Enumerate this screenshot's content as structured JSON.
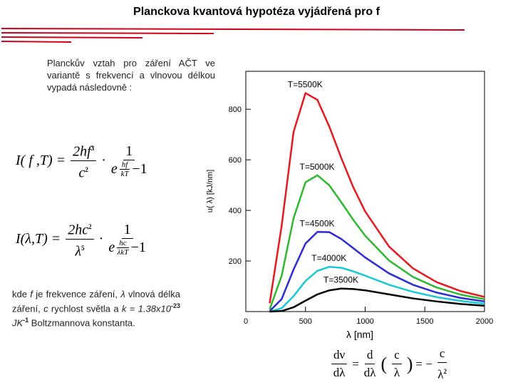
{
  "title": "Planckova kvantová hypotéza  vyjádřená pro f",
  "intro": "Planckův vztah pro záření AČT ve variantě s frekvencí a vlnovou délkou vypadá následovně :",
  "formula_f": {
    "lhs": "I( f ,T) =",
    "num1": "2hf",
    "num1_sup": "3",
    "den1": "c",
    "den1_sup": "2",
    "dot": "·",
    "num2": "1",
    "den2_base": "e",
    "exp_num": "hf",
    "exp_den": "kT",
    "den2_tail": "−1"
  },
  "formula_lambda": {
    "lhs": "I(λ,T) =",
    "num1": "2hc",
    "num1_sup": "2",
    "den1": "λ",
    "den1_sup": "5",
    "dot": "·",
    "num2": "1",
    "den2_base": "e",
    "exp_num": "hc",
    "exp_den": "λkT",
    "den2_tail": "−1"
  },
  "note": [
    "kde ",
    "f",
    " je frekvence záření, ",
    "λ",
    " vlnová délka záření, ",
    "c",
    " rychlost světla a ",
    "k",
    " = 1.38x10",
    "-23",
    " JK",
    "-1",
    " Boltzmannova konstanta."
  ],
  "derivative": {
    "n1": "dν",
    "d1": "dλ",
    "eq1": "=",
    "n2": "d",
    "d2": "dλ",
    "n3": "c",
    "d3": "λ",
    "eq2": "= −",
    "n4": "c",
    "d4": "λ",
    "d4_sup": "2"
  },
  "chart_data": {
    "type": "line",
    "xlabel": "λ [nm]",
    "ylabel": "u( λ)  [kJ/nm]",
    "x": [
      200,
      300,
      400,
      500,
      600,
      700,
      800,
      900,
      1000,
      1200,
      1400,
      1600,
      1800,
      2000
    ],
    "xlim": [
      0,
      2000
    ],
    "xticks": [
      0,
      500,
      1000,
      1500,
      2000
    ],
    "ylim": [
      0,
      950
    ],
    "yticks": [
      200,
      400,
      600,
      800
    ],
    "series": [
      {
        "name": "T=5500K",
        "color": "#e8191c",
        "values": [
          33,
          338,
          710,
          864,
          837,
          731,
          607,
          492,
          396,
          257,
          171,
          116,
          81,
          58
        ]
      },
      {
        "name": "T=5000K",
        "color": "#2db82d",
        "values": [
          9,
          141,
          369,
          511,
          539,
          499,
          432,
          363,
          300,
          202,
          137,
          95,
          67,
          49
        ]
      },
      {
        "name": "T=4500K",
        "color": "#2b2bd6",
        "values": [
          2,
          49,
          166,
          269,
          315,
          314,
          287,
          251,
          214,
          151,
          106,
          75,
          54,
          40
        ]
      },
      {
        "name": "T=4000K",
        "color": "#19c8d8",
        "values": [
          0,
          13,
          61,
          121,
          161,
          177,
          173,
          159,
          142,
          106,
          78,
          57,
          42,
          31
        ]
      },
      {
        "name": "T=3500K",
        "color": "#000000",
        "values": [
          0,
          2,
          17,
          43,
          68,
          84,
          91,
          89,
          84,
          68,
          52,
          40,
          30,
          23
        ]
      }
    ]
  }
}
